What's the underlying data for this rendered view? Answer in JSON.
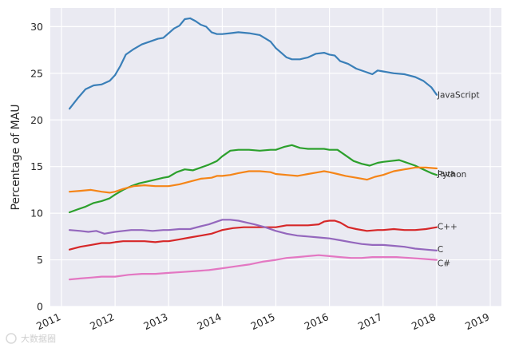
{
  "chart_data": {
    "type": "line",
    "title": "",
    "xlabel": "",
    "ylabel": "Percentage of MAU",
    "xlim": [
      2011,
      2019
    ],
    "ylim": [
      0,
      32
    ],
    "x_ticks": [
      2011,
      2012,
      2013,
      2014,
      2015,
      2016,
      2017,
      2018,
      2019
    ],
    "x_tick_labels": [
      "2011",
      "2012",
      "2013",
      "2014",
      "2015",
      "2016",
      "2017",
      "2018",
      "2019"
    ],
    "y_ticks": [
      0,
      5,
      10,
      15,
      20,
      25,
      30
    ],
    "y_tick_labels": [
      "0",
      "5",
      "10",
      "15",
      "20",
      "25",
      "30"
    ],
    "grid": true,
    "legend": "inline-right",
    "series": [
      {
        "name": "JavaScript",
        "label": "JavaScript",
        "color": "#3a7fb8",
        "x": [
          2011.15,
          2011.3,
          2011.45,
          2011.6,
          2011.75,
          2011.9,
          2012.0,
          2012.1,
          2012.2,
          2012.35,
          2012.5,
          2012.65,
          2012.8,
          2012.9,
          2013.0,
          2013.1,
          2013.2,
          2013.3,
          2013.4,
          2013.5,
          2013.6,
          2013.7,
          2013.8,
          2013.9,
          2014.0,
          2014.15,
          2014.3,
          2014.5,
          2014.7,
          2014.9,
          2015.0,
          2015.1,
          2015.2,
          2015.3,
          2015.45,
          2015.6,
          2015.75,
          2015.9,
          2016.0,
          2016.1,
          2016.2,
          2016.35,
          2016.5,
          2016.65,
          2016.8,
          2016.9,
          2017.0,
          2017.2,
          2017.4,
          2017.6,
          2017.75,
          2017.9,
          2018.0
        ],
        "values": [
          21.2,
          22.3,
          23.3,
          23.7,
          23.8,
          24.2,
          24.8,
          25.8,
          27.0,
          27.6,
          28.1,
          28.4,
          28.7,
          28.8,
          29.3,
          29.8,
          30.1,
          30.8,
          30.9,
          30.6,
          30.2,
          30.0,
          29.4,
          29.2,
          29.2,
          29.3,
          29.4,
          29.3,
          29.1,
          28.4,
          27.7,
          27.2,
          26.7,
          26.5,
          26.5,
          26.7,
          27.1,
          27.2,
          27.0,
          26.9,
          26.3,
          26.0,
          25.5,
          25.2,
          24.9,
          25.3,
          25.2,
          25.0,
          24.9,
          24.6,
          24.2,
          23.5,
          22.7
        ]
      },
      {
        "name": "Python",
        "label": "Python",
        "color": "#2ca02c",
        "x": [
          2011.15,
          2011.3,
          2011.45,
          2011.6,
          2011.75,
          2011.9,
          2012.0,
          2012.15,
          2012.3,
          2012.45,
          2012.6,
          2012.75,
          2012.9,
          2013.0,
          2013.15,
          2013.3,
          2013.45,
          2013.6,
          2013.75,
          2013.9,
          2014.0,
          2014.15,
          2014.3,
          2014.5,
          2014.7,
          2014.9,
          2015.0,
          2015.15,
          2015.3,
          2015.45,
          2015.6,
          2015.75,
          2015.9,
          2016.0,
          2016.15,
          2016.3,
          2016.45,
          2016.6,
          2016.75,
          2016.9,
          2017.0,
          2017.15,
          2017.3,
          2017.45,
          2017.6,
          2017.75,
          2017.9,
          2018.0
        ],
        "values": [
          10.1,
          10.4,
          10.7,
          11.1,
          11.3,
          11.6,
          12.0,
          12.5,
          12.9,
          13.2,
          13.4,
          13.6,
          13.8,
          13.9,
          14.4,
          14.7,
          14.6,
          14.9,
          15.2,
          15.6,
          16.1,
          16.7,
          16.8,
          16.8,
          16.7,
          16.8,
          16.8,
          17.1,
          17.3,
          17.0,
          16.9,
          16.9,
          16.9,
          16.8,
          16.8,
          16.2,
          15.6,
          15.3,
          15.1,
          15.4,
          15.5,
          15.6,
          15.7,
          15.4,
          15.1,
          14.7,
          14.3,
          14.1
        ]
      },
      {
        "name": "Java",
        "label": "Java",
        "color": "#f58518",
        "x": [
          2011.15,
          2011.35,
          2011.55,
          2011.75,
          2011.9,
          2012.0,
          2012.15,
          2012.35,
          2012.55,
          2012.75,
          2012.9,
          2013.0,
          2013.2,
          2013.4,
          2013.6,
          2013.8,
          2013.9,
          2014.0,
          2014.15,
          2014.3,
          2014.5,
          2014.7,
          2014.9,
          2015.0,
          2015.2,
          2015.4,
          2015.6,
          2015.8,
          2015.9,
          2016.0,
          2016.15,
          2016.3,
          2016.5,
          2016.7,
          2016.85,
          2017.0,
          2017.2,
          2017.4,
          2017.6,
          2017.8,
          2018.0
        ],
        "values": [
          12.3,
          12.4,
          12.5,
          12.3,
          12.2,
          12.3,
          12.6,
          12.9,
          13.0,
          12.9,
          12.9,
          12.9,
          13.1,
          13.4,
          13.7,
          13.8,
          14.0,
          14.0,
          14.1,
          14.3,
          14.5,
          14.5,
          14.4,
          14.2,
          14.1,
          14.0,
          14.2,
          14.4,
          14.5,
          14.4,
          14.2,
          14.0,
          13.8,
          13.6,
          13.9,
          14.1,
          14.5,
          14.7,
          14.9,
          14.9,
          14.8
        ]
      },
      {
        "name": "C++",
        "label": "C++",
        "color": "#d62728",
        "x": [
          2011.15,
          2011.35,
          2011.55,
          2011.75,
          2011.9,
          2012.0,
          2012.15,
          2012.35,
          2012.55,
          2012.75,
          2012.9,
          2013.0,
          2013.2,
          2013.4,
          2013.6,
          2013.8,
          2013.9,
          2014.0,
          2014.2,
          2014.4,
          2014.6,
          2014.8,
          2015.0,
          2015.2,
          2015.4,
          2015.6,
          2015.8,
          2015.9,
          2016.0,
          2016.1,
          2016.2,
          2016.35,
          2016.5,
          2016.7,
          2016.9,
          2017.0,
          2017.2,
          2017.4,
          2017.6,
          2017.8,
          2018.0
        ],
        "values": [
          6.1,
          6.4,
          6.6,
          6.8,
          6.8,
          6.9,
          7.0,
          7.0,
          7.0,
          6.9,
          7.0,
          7.0,
          7.2,
          7.4,
          7.6,
          7.8,
          8.0,
          8.2,
          8.4,
          8.5,
          8.5,
          8.5,
          8.5,
          8.7,
          8.7,
          8.7,
          8.8,
          9.1,
          9.2,
          9.2,
          9.0,
          8.5,
          8.3,
          8.1,
          8.2,
          8.2,
          8.3,
          8.2,
          8.2,
          8.3,
          8.5
        ]
      },
      {
        "name": "C",
        "label": "C",
        "color": "#9467bd",
        "x": [
          2011.15,
          2011.35,
          2011.5,
          2011.65,
          2011.8,
          2011.9,
          2012.0,
          2012.15,
          2012.3,
          2012.5,
          2012.7,
          2012.9,
          2013.0,
          2013.2,
          2013.4,
          2013.6,
          2013.75,
          2013.9,
          2014.0,
          2014.15,
          2014.3,
          2014.45,
          2014.6,
          2014.8,
          2015.0,
          2015.2,
          2015.4,
          2015.6,
          2015.8,
          2016.0,
          2016.2,
          2016.4,
          2016.6,
          2016.8,
          2017.0,
          2017.2,
          2017.4,
          2017.6,
          2017.8,
          2018.0
        ],
        "values": [
          8.2,
          8.1,
          8.0,
          8.1,
          7.8,
          7.9,
          8.0,
          8.1,
          8.2,
          8.2,
          8.1,
          8.2,
          8.2,
          8.3,
          8.3,
          8.6,
          8.8,
          9.1,
          9.3,
          9.3,
          9.2,
          9.0,
          8.8,
          8.5,
          8.1,
          7.8,
          7.6,
          7.5,
          7.4,
          7.3,
          7.1,
          6.9,
          6.7,
          6.6,
          6.6,
          6.5,
          6.4,
          6.2,
          6.1,
          6.0
        ]
      },
      {
        "name": "C#",
        "label": "C#",
        "color": "#e377c2",
        "x": [
          2011.15,
          2011.35,
          2011.55,
          2011.75,
          2012.0,
          2012.25,
          2012.5,
          2012.75,
          2013.0,
          2013.25,
          2013.5,
          2013.75,
          2014.0,
          2014.25,
          2014.5,
          2014.75,
          2015.0,
          2015.2,
          2015.4,
          2015.6,
          2015.8,
          2016.0,
          2016.2,
          2016.4,
          2016.6,
          2016.8,
          2017.0,
          2017.25,
          2017.5,
          2017.75,
          2018.0
        ],
        "values": [
          2.9,
          3.0,
          3.1,
          3.2,
          3.2,
          3.4,
          3.5,
          3.5,
          3.6,
          3.7,
          3.8,
          3.9,
          4.1,
          4.3,
          4.5,
          4.8,
          5.0,
          5.2,
          5.3,
          5.4,
          5.5,
          5.4,
          5.3,
          5.2,
          5.2,
          5.3,
          5.3,
          5.3,
          5.2,
          5.1,
          5.0
        ]
      }
    ]
  },
  "watermark": {
    "text": "大数据圈"
  }
}
